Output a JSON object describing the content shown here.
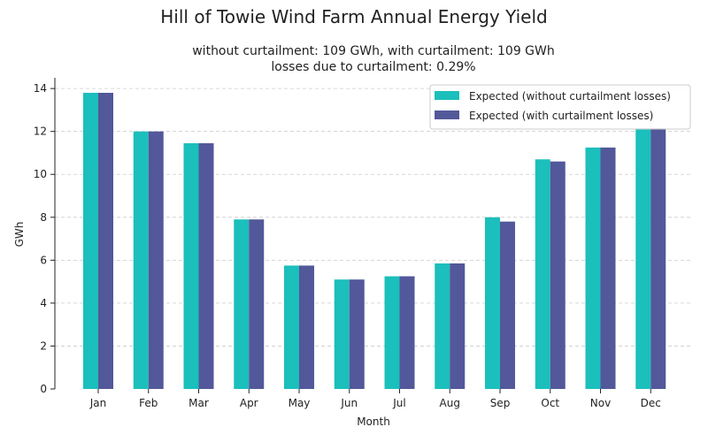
{
  "chart_data": {
    "type": "bar",
    "title": "Hill of Towie Wind Farm Annual Energy Yield",
    "subtitle_lines": [
      "without curtailment: 109 GWh, with curtailment: 109 GWh",
      "losses due to curtailment: 0.29%"
    ],
    "xlabel": "Month",
    "ylabel": "GWh",
    "ylim": [
      0,
      14.5
    ],
    "yticks": [
      0,
      2,
      4,
      6,
      8,
      10,
      12,
      14
    ],
    "grid": "y-dashed",
    "legend_position": "top-right",
    "categories": [
      "Jan",
      "Feb",
      "Mar",
      "Apr",
      "May",
      "Jun",
      "Jul",
      "Aug",
      "Sep",
      "Oct",
      "Nov",
      "Dec"
    ],
    "series": [
      {
        "name": "Expected (without curtailment losses)",
        "color": "#1bbfbb",
        "values": [
          13.8,
          12.0,
          11.45,
          7.9,
          5.75,
          5.1,
          5.25,
          5.85,
          8.0,
          10.7,
          11.25,
          12.15
        ]
      },
      {
        "name": "Expected (with curtailment losses)",
        "color": "#52589a",
        "values": [
          13.8,
          12.0,
          11.45,
          7.9,
          5.75,
          5.1,
          5.25,
          5.85,
          7.8,
          10.6,
          11.25,
          12.15
        ]
      }
    ]
  }
}
